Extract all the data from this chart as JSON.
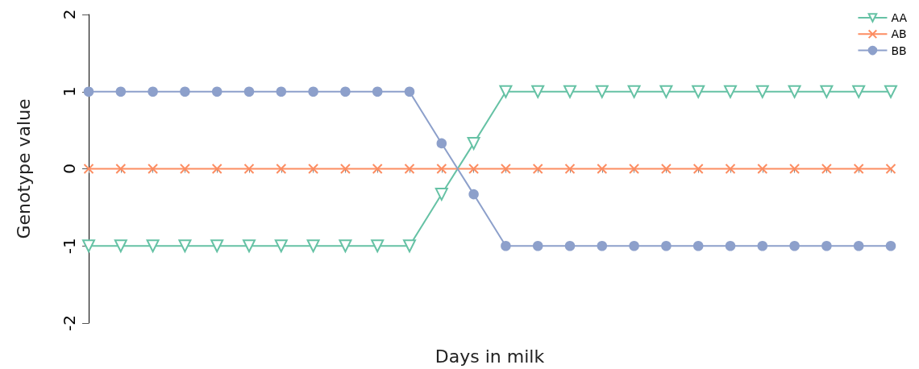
{
  "chart_data": {
    "type": "line",
    "xlabel": "Days in milk",
    "ylabel": "Genotype value",
    "categories": [
      null,
      null,
      null,
      null,
      null,
      null,
      null,
      null,
      null,
      null,
      null,
      null,
      null,
      null,
      null,
      null,
      null,
      null,
      null,
      null,
      null,
      null,
      null,
      null,
      null,
      null
    ],
    "series": [
      {
        "name": "AA",
        "color": "#66c2a5",
        "marker": "triangle",
        "values": [
          -1,
          -1,
          -1,
          -1,
          -1,
          -1,
          -1,
          -1,
          -1,
          -1,
          -1,
          -0.33,
          0.33,
          1,
          1,
          1,
          1,
          1,
          1,
          1,
          1,
          1,
          1,
          1,
          1,
          1
        ]
      },
      {
        "name": "AB",
        "color": "#fc8d62",
        "marker": "cross",
        "values": [
          0,
          0,
          0,
          0,
          0,
          0,
          0,
          0,
          0,
          0,
          0,
          0,
          0,
          0,
          0,
          0,
          0,
          0,
          0,
          0,
          0,
          0,
          0,
          0,
          0,
          0
        ]
      },
      {
        "name": "BB",
        "color": "#8da0cb",
        "marker": "circle",
        "values": [
          1,
          1,
          1,
          1,
          1,
          1,
          1,
          1,
          1,
          1,
          1,
          0.33,
          -0.33,
          -1,
          -1,
          -1,
          -1,
          -1,
          -1,
          -1,
          -1,
          -1,
          -1,
          -1,
          -1,
          -1
        ]
      }
    ],
    "ylim": [
      -2,
      2
    ],
    "yticks": [
      -2,
      -1,
      0,
      1,
      2
    ],
    "grid": false,
    "legend": "top right",
    "tick_labels": "y"
  }
}
